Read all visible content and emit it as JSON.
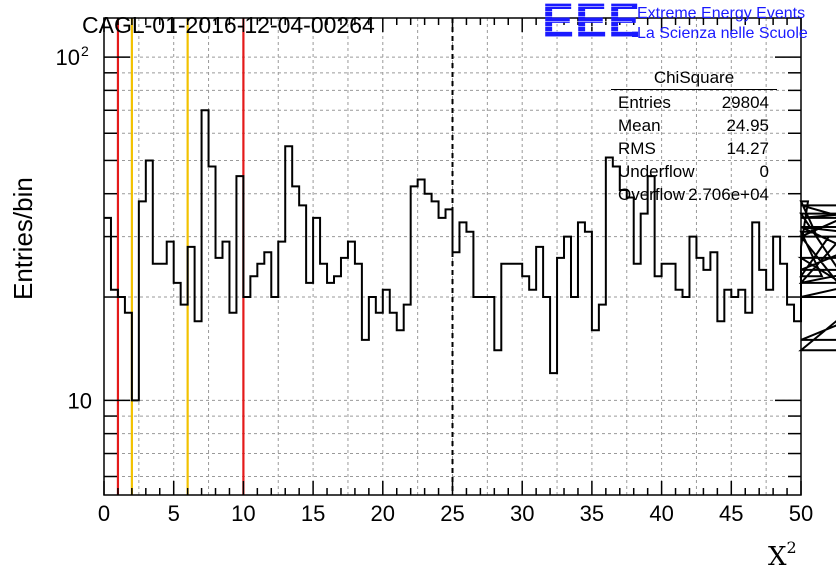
{
  "title": "CAGL-01-2016-12-04-00264",
  "logo": {
    "mark": "EEE",
    "line1": "Extreme Energy Events",
    "line2": "La Scienza nelle Scuole",
    "color": "#1a1aff"
  },
  "stats": {
    "title": "ChiSquare",
    "rows": [
      {
        "label": "Entries",
        "value": "29804"
      },
      {
        "label": "Mean",
        "value": "24.95"
      },
      {
        "label": "RMS",
        "value": "14.27"
      },
      {
        "label": "Underflow",
        "value": "0"
      },
      {
        "label": "Overflow",
        "value": "2.706e+04"
      }
    ]
  },
  "chart_data": {
    "type": "histogram",
    "xlabel": "X²",
    "ylabel": "Entries/bin",
    "xlim": [
      0,
      50
    ],
    "ylim": [
      5.3,
      130
    ],
    "yscale": "log",
    "grid": true,
    "bin_width": 0.5,
    "x_ticks": [
      0,
      5,
      10,
      15,
      20,
      25,
      30,
      35,
      40,
      45,
      50
    ],
    "y_tick_labels": [
      {
        "value": 10,
        "label": "10"
      },
      {
        "value": 100,
        "label": "10",
        "exponent": "2"
      }
    ],
    "values": [
      34,
      21,
      20,
      18,
      10,
      38,
      50,
      25,
      25,
      29,
      22,
      19,
      28,
      17,
      70,
      48,
      26,
      29,
      18,
      45,
      20,
      23,
      25,
      27,
      20,
      29,
      55,
      42,
      37,
      22,
      34,
      25,
      22,
      23,
      26,
      29,
      25,
      15,
      20,
      18,
      21,
      18,
      16,
      19,
      42,
      44,
      40,
      38,
      34,
      36,
      27,
      33,
      31,
      20,
      20,
      20,
      14,
      25,
      25,
      25,
      23,
      21,
      28,
      20,
      12,
      26,
      30,
      20,
      33,
      31,
      16,
      19,
      51,
      48,
      41,
      39,
      25,
      35,
      45,
      23,
      25,
      25,
      21,
      20,
      30,
      26,
      24,
      27,
      17,
      21,
      20,
      21,
      18,
      33,
      24,
      21,
      30,
      25,
      19,
      17,
      28,
      38,
      31,
      23,
      30,
      30,
      34,
      35,
      20,
      22,
      37,
      32,
      30,
      14,
      24,
      32,
      32,
      22,
      26,
      15,
      22
    ],
    "vertical_lines": [
      {
        "x": 1,
        "color": "#e41a1a",
        "style": "solid"
      },
      {
        "x": 2,
        "color": "#f2c200",
        "style": "solid"
      },
      {
        "x": 6,
        "color": "#f2c200",
        "style": "solid"
      },
      {
        "x": 10,
        "color": "#e41a1a",
        "style": "solid"
      },
      {
        "x": 25,
        "color": "#000000",
        "style": "dashed"
      }
    ]
  }
}
